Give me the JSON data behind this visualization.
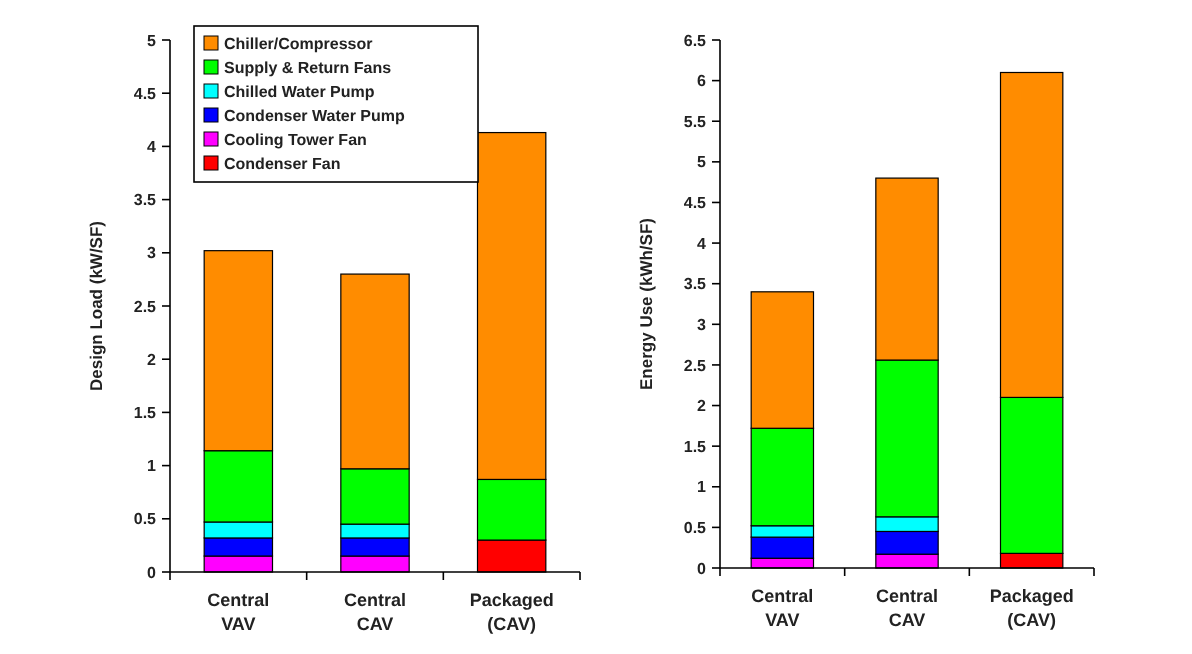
{
  "chart_data": [
    {
      "type": "bar",
      "stacked": true,
      "ylabel": "Design Load (kW/SF)",
      "categories": [
        "Central VAV",
        "Central CAV",
        "Packaged (CAV)"
      ],
      "ylim": [
        0,
        5
      ],
      "yticks": [
        0,
        0.5,
        1,
        1.5,
        2,
        2.5,
        3,
        3.5,
        4,
        4.5,
        5
      ],
      "legend": "top left",
      "series": [
        {
          "name": "Condenser Fan",
          "color": "#ff0000",
          "values": [
            null,
            null,
            0.3
          ]
        },
        {
          "name": "Cooling Tower Fan",
          "color": "#ff00ff",
          "values": [
            0.15,
            0.15,
            null
          ]
        },
        {
          "name": "Condenser Water Pump",
          "color": "#0000ff",
          "values": [
            0.17,
            0.17,
            null
          ]
        },
        {
          "name": "Chilled Water Pump",
          "color": "#00ffff",
          "values": [
            0.15,
            0.13,
            null
          ]
        },
        {
          "name": "Supply & Return Fans",
          "color": "#00ff00",
          "values": [
            0.67,
            0.52,
            0.57
          ]
        },
        {
          "name": "Chiller/Compressor",
          "color": "#ff8c00",
          "values": [
            1.88,
            1.83,
            3.26
          ]
        }
      ]
    },
    {
      "type": "bar",
      "stacked": true,
      "ylabel": "Energy Use (kWh/SF)",
      "categories": [
        "Central VAV",
        "Central CAV",
        "Packaged (CAV)"
      ],
      "ylim": [
        0,
        6.5
      ],
      "yticks": [
        0,
        0.5,
        1,
        1.5,
        2,
        2.5,
        3,
        3.5,
        4,
        4.5,
        5,
        5.5,
        6,
        6.5
      ],
      "series": [
        {
          "color": "#ff0000",
          "values": [
            null,
            null,
            0.18
          ]
        },
        {
          "color": "#ff00ff",
          "values": [
            0.12,
            0.17,
            null
          ]
        },
        {
          "color": "#0000ff",
          "values": [
            0.26,
            0.28,
            null
          ]
        },
        {
          "color": "#00ffff",
          "values": [
            0.14,
            0.18,
            null
          ]
        },
        {
          "color": "#00ff00",
          "values": [
            1.2,
            1.93,
            1.92
          ]
        },
        {
          "color": "#ff8c00",
          "values": [
            1.68,
            2.24,
            4.0
          ]
        }
      ]
    }
  ]
}
